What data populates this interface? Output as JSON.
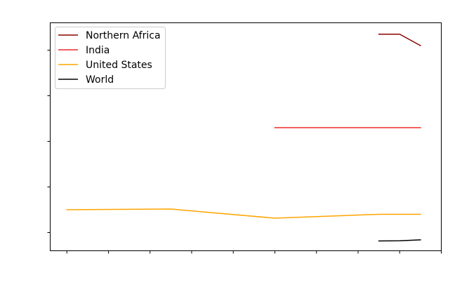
{
  "chart_data": {
    "type": "line",
    "title": "",
    "xlabel": "",
    "ylabel": "",
    "grid": false,
    "legend_placement": "upper-left",
    "x_range": [
      -0.4,
      9.0
    ],
    "y_range": [
      0,
      100
    ],
    "x_ticks": [
      0,
      1,
      2,
      3,
      4,
      5,
      6,
      7,
      8,
      9
    ],
    "y_ticks": [
      8,
      28,
      48,
      68,
      88
    ],
    "series": [
      {
        "name": "Northern Africa",
        "color": "#8b0000",
        "points": [
          [
            7.5,
            95
          ],
          [
            8.0,
            95
          ],
          [
            8.5,
            90
          ]
        ]
      },
      {
        "name": "India",
        "color": "#ee2a2a",
        "points": [
          [
            5.0,
            54
          ],
          [
            8.5,
            54
          ]
        ]
      },
      {
        "name": "United States",
        "color": "#ffa500",
        "points": [
          [
            0.0,
            18
          ],
          [
            2.5,
            18.3
          ],
          [
            5.0,
            14.3
          ],
          [
            7.5,
            16
          ],
          [
            8.5,
            16
          ]
        ]
      },
      {
        "name": "World",
        "color": "#000000",
        "points": [
          [
            7.5,
            4.3
          ],
          [
            8.0,
            4.4
          ],
          [
            8.5,
            4.8
          ]
        ]
      }
    ]
  }
}
